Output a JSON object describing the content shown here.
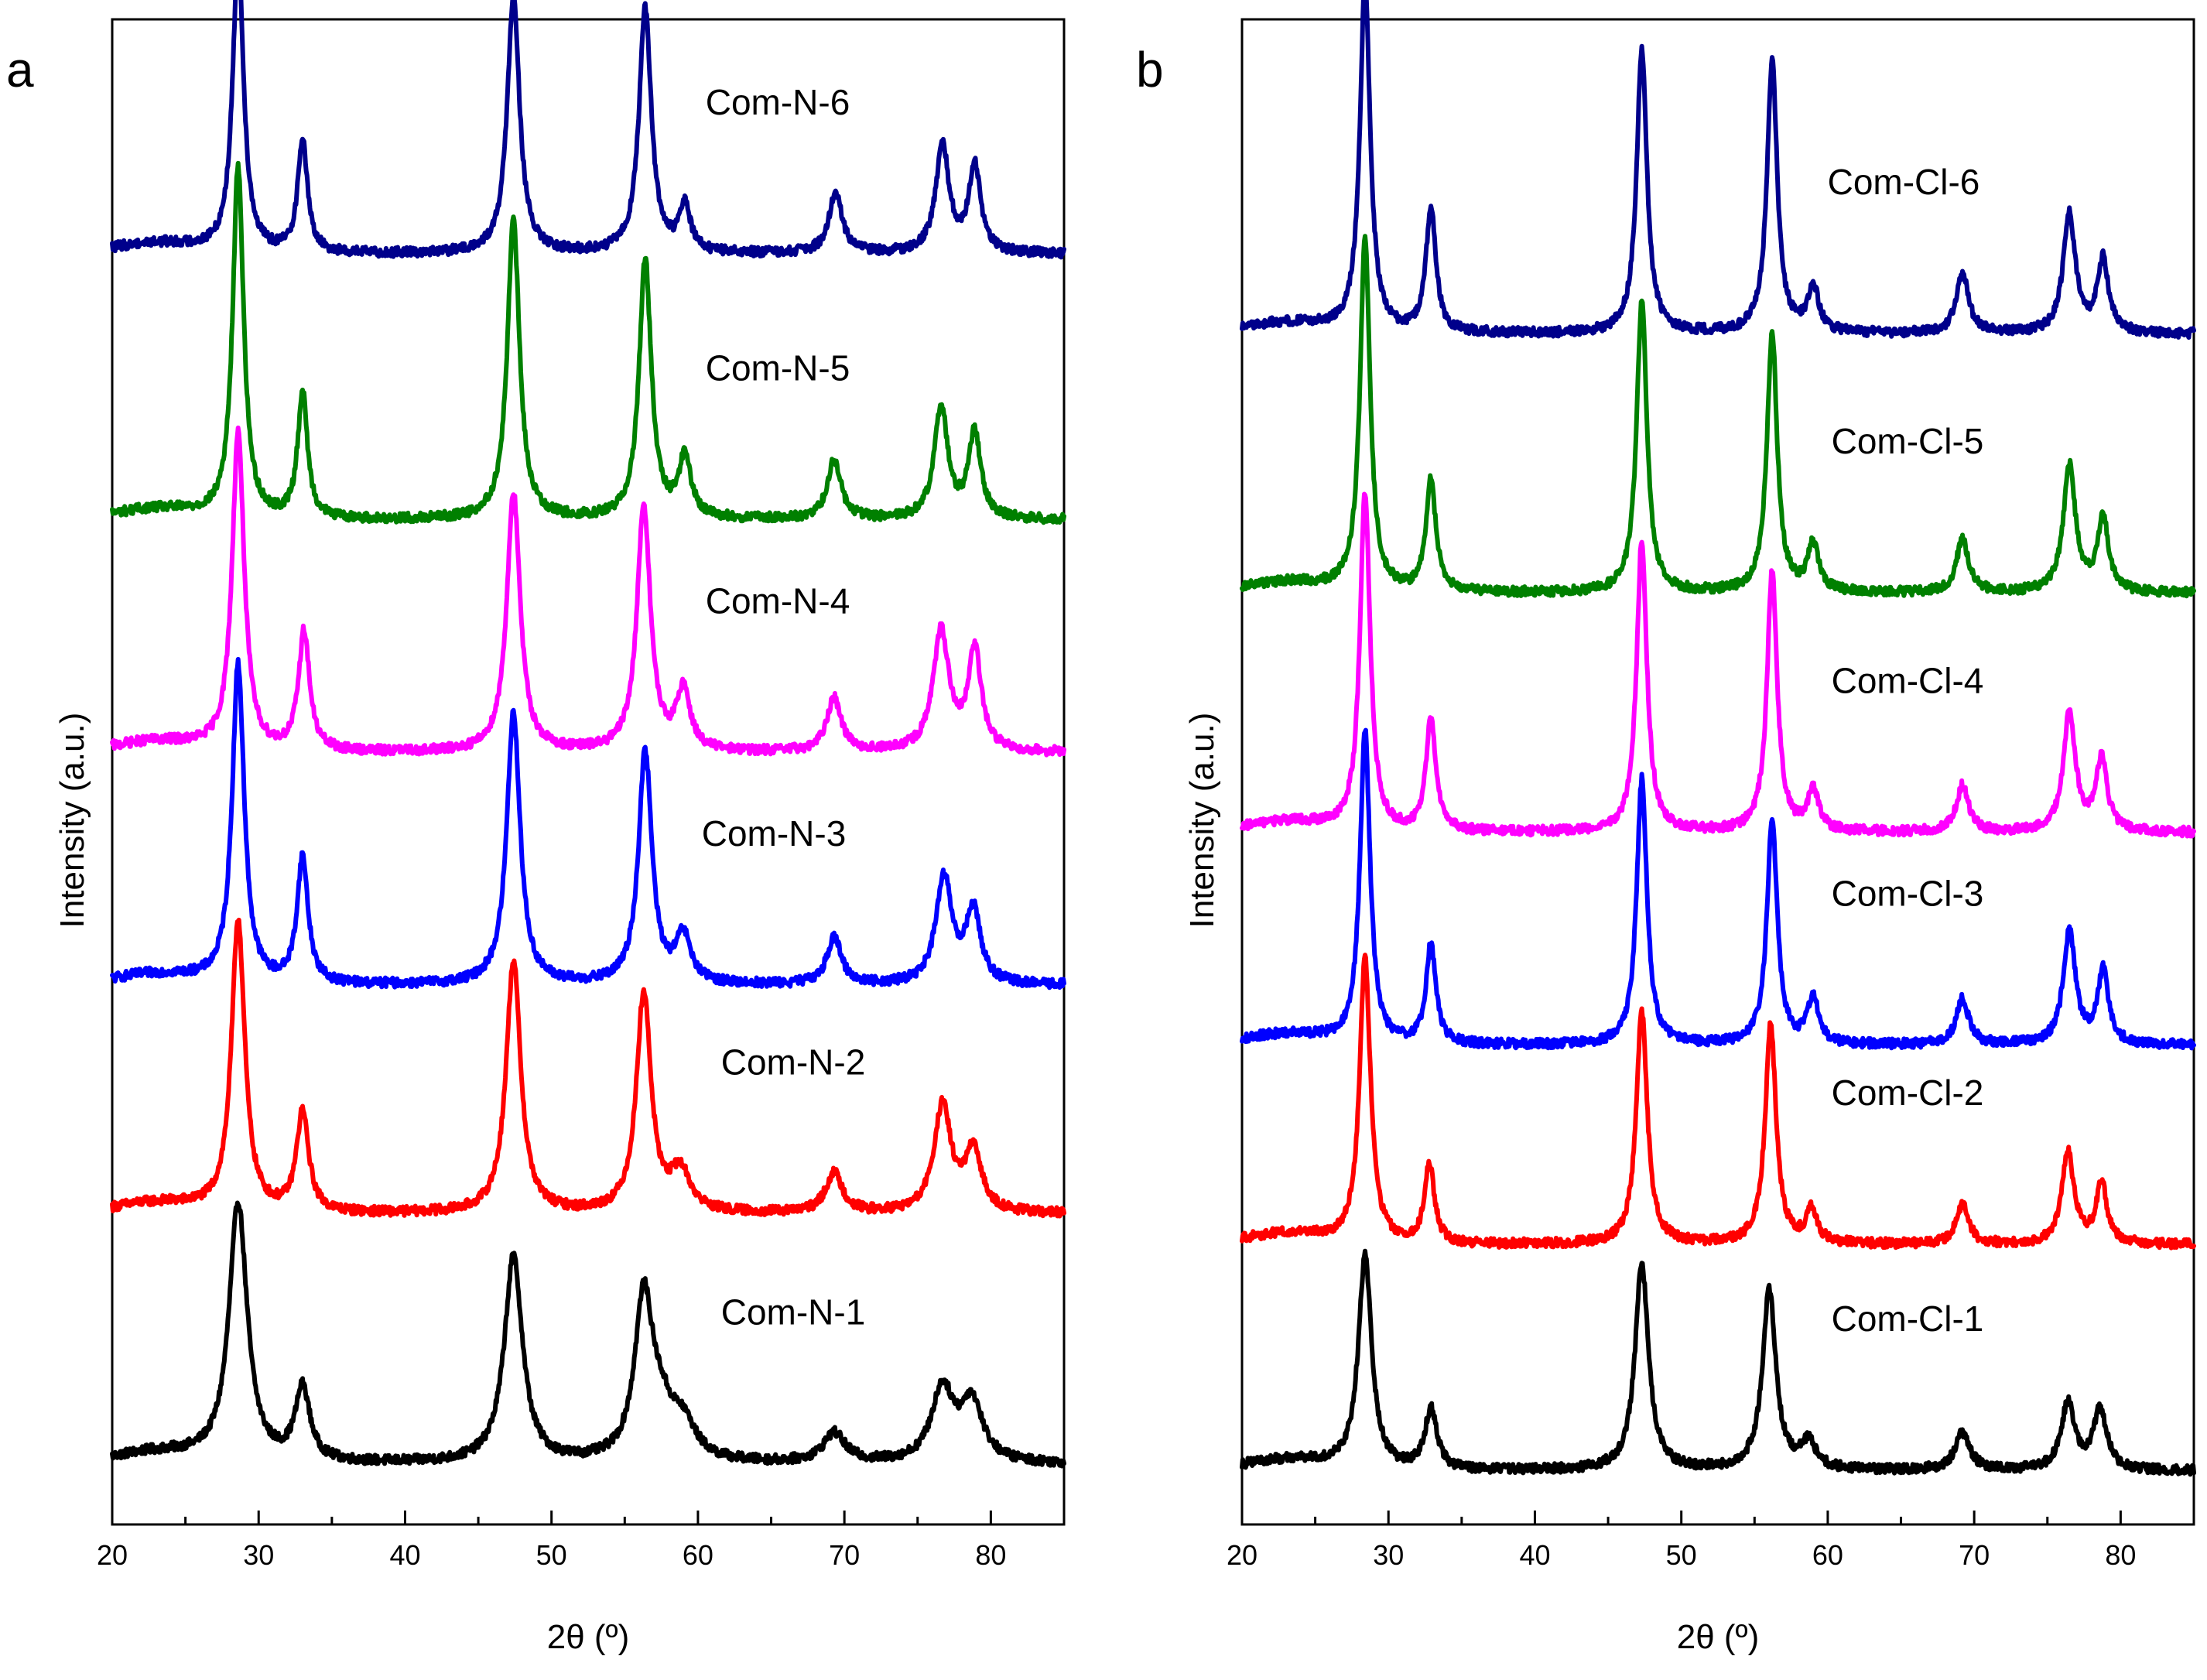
{
  "chart_data": [
    {
      "type": "line",
      "panel": "a",
      "xlabel": "2θ (º)",
      "ylabel": "Intensity (a.u.)",
      "xlim": [
        20,
        85
      ],
      "xticks": [
        20,
        30,
        40,
        50,
        60,
        70,
        80
      ],
      "ylim": [
        0,
        11.0
      ],
      "yticks": false,
      "series": [
        {
          "name": "Com-N-1",
          "color": "#000000",
          "offset": 0.0,
          "baseline": 0.25,
          "peaks": [
            [
              28.6,
              1.95,
              0.75
            ],
            [
              33.0,
              0.55,
              0.6
            ],
            [
              47.4,
              1.55,
              0.75
            ],
            [
              56.3,
              1.2,
              0.75
            ],
            [
              57.5,
              0.3,
              1.0
            ],
            [
              59.0,
              0.25,
              1.0
            ],
            [
              69.3,
              0.22,
              0.9
            ],
            [
              76.7,
              0.55,
              0.9
            ],
            [
              78.7,
              0.45,
              0.9
            ]
          ]
        },
        {
          "name": "Com-N-2",
          "color": "#ff0000",
          "offset": 1.85,
          "baseline": 0.28,
          "peaks": [
            [
              28.6,
              2.2,
              0.55
            ],
            [
              33.0,
              0.75,
              0.5
            ],
            [
              47.4,
              1.9,
              0.6
            ],
            [
              56.3,
              1.65,
              0.6
            ],
            [
              58.8,
              0.3,
              0.8
            ],
            [
              69.3,
              0.3,
              0.7
            ],
            [
              76.7,
              0.8,
              0.7
            ],
            [
              78.8,
              0.45,
              0.7
            ]
          ]
        },
        {
          "name": "Com-N-3",
          "color": "#0000ff",
          "offset": 3.55,
          "baseline": 0.3,
          "peaks": [
            [
              28.6,
              2.4,
              0.5
            ],
            [
              33.0,
              0.95,
              0.45
            ],
            [
              47.4,
              2.05,
              0.55
            ],
            [
              56.4,
              1.75,
              0.55
            ],
            [
              59.0,
              0.35,
              0.6
            ],
            [
              69.3,
              0.35,
              0.6
            ],
            [
              76.8,
              0.8,
              0.65
            ],
            [
              78.8,
              0.55,
              0.6
            ]
          ]
        },
        {
          "name": "Com-N-4",
          "color": "#ff00ff",
          "offset": 5.3,
          "baseline": 0.3,
          "peaks": [
            [
              28.6,
              2.4,
              0.5
            ],
            [
              33.1,
              0.9,
              0.45
            ],
            [
              47.4,
              1.95,
              0.55
            ],
            [
              56.3,
              1.85,
              0.55
            ],
            [
              59.0,
              0.45,
              0.55
            ],
            [
              69.3,
              0.4,
              0.6
            ],
            [
              76.6,
              0.9,
              0.65
            ],
            [
              78.9,
              0.75,
              0.55
            ]
          ]
        },
        {
          "name": "Com-N-5",
          "color": "#008000",
          "offset": 7.05,
          "baseline": 0.3,
          "peaks": [
            [
              28.6,
              2.65,
              0.45
            ],
            [
              33.0,
              0.95,
              0.4
            ],
            [
              47.4,
              2.25,
              0.5
            ],
            [
              56.4,
              1.95,
              0.5
            ],
            [
              59.1,
              0.45,
              0.5
            ],
            [
              69.3,
              0.45,
              0.55
            ],
            [
              76.6,
              0.85,
              0.55
            ],
            [
              78.9,
              0.65,
              0.5
            ]
          ]
        },
        {
          "name": "Com-N-6",
          "color": "#00008b",
          "offset": 9.05,
          "baseline": 0.3,
          "peaks": [
            [
              28.6,
              2.25,
              0.45
            ],
            [
              33.0,
              0.85,
              0.4
            ],
            [
              47.4,
              1.95,
              0.5
            ],
            [
              56.4,
              1.85,
              0.5
            ],
            [
              59.1,
              0.35,
              0.45
            ],
            [
              69.4,
              0.45,
              0.55
            ],
            [
              76.7,
              0.8,
              0.55
            ],
            [
              78.9,
              0.65,
              0.5
            ]
          ]
        }
      ]
    },
    {
      "type": "line",
      "panel": "b",
      "xlabel": "2θ (º)",
      "ylabel": "Intensity (a.u.)",
      "xlim": [
        20,
        85
      ],
      "xticks": [
        20,
        30,
        40,
        50,
        60,
        70,
        80
      ],
      "ylim": [
        0,
        11.0
      ],
      "yticks": false,
      "series": [
        {
          "name": "Com-Cl-1",
          "color": "#000000",
          "offset": 0.0,
          "baseline": 0.2,
          "peaks": [
            [
              28.4,
              1.6,
              0.55
            ],
            [
              32.9,
              0.45,
              0.5
            ],
            [
              47.3,
              1.55,
              0.55
            ],
            [
              56.0,
              1.35,
              0.55
            ],
            [
              58.7,
              0.2,
              0.6
            ],
            [
              69.2,
              0.28,
              0.6
            ],
            [
              76.4,
              0.5,
              0.55
            ],
            [
              78.6,
              0.45,
              0.55
            ]
          ]
        },
        {
          "name": "Com-Cl-2",
          "color": "#ff0000",
          "offset": 1.7,
          "baseline": 0.2,
          "peaks": [
            [
              28.4,
              2.15,
              0.45
            ],
            [
              32.8,
              0.6,
              0.4
            ],
            [
              47.3,
              1.75,
              0.45
            ],
            [
              56.1,
              1.65,
              0.45
            ],
            [
              58.9,
              0.25,
              0.45
            ],
            [
              69.2,
              0.3,
              0.5
            ],
            [
              76.4,
              0.7,
              0.5
            ],
            [
              78.7,
              0.45,
              0.45
            ]
          ]
        },
        {
          "name": "Com-Cl-3",
          "color": "#0000ff",
          "offset": 3.2,
          "baseline": 0.2,
          "peaks": [
            [
              28.4,
              2.35,
              0.42
            ],
            [
              32.9,
              0.75,
              0.4
            ],
            [
              47.3,
              2.0,
              0.42
            ],
            [
              56.2,
              1.7,
              0.42
            ],
            [
              59.0,
              0.35,
              0.45
            ],
            [
              69.2,
              0.35,
              0.5
            ],
            [
              76.5,
              0.85,
              0.5
            ],
            [
              78.8,
              0.55,
              0.45
            ]
          ]
        },
        {
          "name": "Com-Cl-4",
          "color": "#ff00ff",
          "offset": 4.8,
          "baseline": 0.2,
          "peaks": [
            [
              28.4,
              2.55,
              0.42
            ],
            [
              32.9,
              0.85,
              0.4
            ],
            [
              47.3,
              2.2,
              0.42
            ],
            [
              56.2,
              1.95,
              0.42
            ],
            [
              59.0,
              0.3,
              0.45
            ],
            [
              69.2,
              0.35,
              0.5
            ],
            [
              76.5,
              0.9,
              0.5
            ],
            [
              78.7,
              0.55,
              0.45
            ]
          ]
        },
        {
          "name": "Com-Cl-5",
          "color": "#008000",
          "offset": 6.6,
          "baseline": 0.2,
          "peaks": [
            [
              28.4,
              2.65,
              0.42
            ],
            [
              32.9,
              0.85,
              0.4
            ],
            [
              47.3,
              2.2,
              0.42
            ],
            [
              56.2,
              1.95,
              0.42
            ],
            [
              59.0,
              0.35,
              0.45
            ],
            [
              69.2,
              0.4,
              0.5
            ],
            [
              76.5,
              0.95,
              0.5
            ],
            [
              78.8,
              0.55,
              0.45
            ]
          ]
        },
        {
          "name": "Com-Cl-6",
          "color": "#00008b",
          "offset": 8.55,
          "baseline": 0.2,
          "peaks": [
            [
              28.4,
              2.65,
              0.42
            ],
            [
              32.9,
              0.95,
              0.4
            ],
            [
              47.3,
              2.15,
              0.42
            ],
            [
              56.2,
              2.05,
              0.42
            ],
            [
              59.0,
              0.35,
              0.45
            ],
            [
              69.2,
              0.45,
              0.5
            ],
            [
              76.5,
              0.9,
              0.5
            ],
            [
              78.8,
              0.55,
              0.45
            ]
          ]
        }
      ]
    }
  ],
  "panels": [
    {
      "letter": "a"
    },
    {
      "letter": "b"
    }
  ]
}
